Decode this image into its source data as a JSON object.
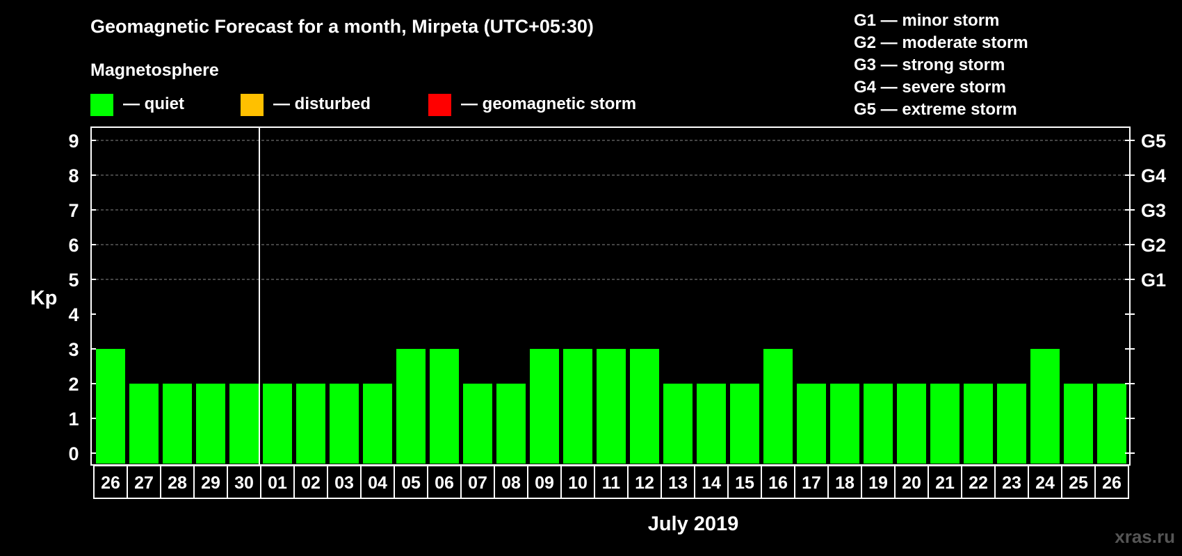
{
  "chart_data": {
    "type": "bar",
    "title": "Geomagnetic Forecast for a month, Mirpeta (UTC+05:30)",
    "legend_title": "Magnetosphere",
    "legend": [
      {
        "label": "— quiet",
        "color": "#00ff00"
      },
      {
        "label": "— disturbed",
        "color": "#ffc000"
      },
      {
        "label": "— geomagnetic storm",
        "color": "#ff0000"
      }
    ],
    "storm_legend": [
      "G1 — minor storm",
      "G2 — moderate storm",
      "G3 — strong storm",
      "G4 — severe storm",
      "G5 — extreme storm"
    ],
    "ylabel": "Kp",
    "xlabel": "July 2019",
    "ylim": [
      0,
      9
    ],
    "yticks": [
      "0",
      "1",
      "2",
      "3",
      "4",
      "5",
      "6",
      "7",
      "8",
      "9"
    ],
    "right_ticks": [
      {
        "value": 5,
        "label": "G1"
      },
      {
        "value": 6,
        "label": "G2"
      },
      {
        "value": 7,
        "label": "G3"
      },
      {
        "value": 8,
        "label": "G4"
      },
      {
        "value": 9,
        "label": "G5"
      }
    ],
    "month_divider_after_index": 4,
    "categories": [
      "26",
      "27",
      "28",
      "29",
      "30",
      "01",
      "02",
      "03",
      "04",
      "05",
      "06",
      "07",
      "08",
      "09",
      "10",
      "11",
      "12",
      "13",
      "14",
      "15",
      "16",
      "17",
      "18",
      "19",
      "20",
      "21",
      "22",
      "23",
      "24",
      "25",
      "26"
    ],
    "values": [
      3,
      2,
      2,
      2,
      2,
      2,
      2,
      2,
      2,
      3,
      3,
      2,
      2,
      3,
      3,
      3,
      3,
      2,
      2,
      2,
      3,
      2,
      2,
      2,
      2,
      2,
      2,
      2,
      3,
      2,
      2
    ],
    "bar_color": "#00ff00",
    "grid": "dashed"
  },
  "watermark": "xras.ru"
}
